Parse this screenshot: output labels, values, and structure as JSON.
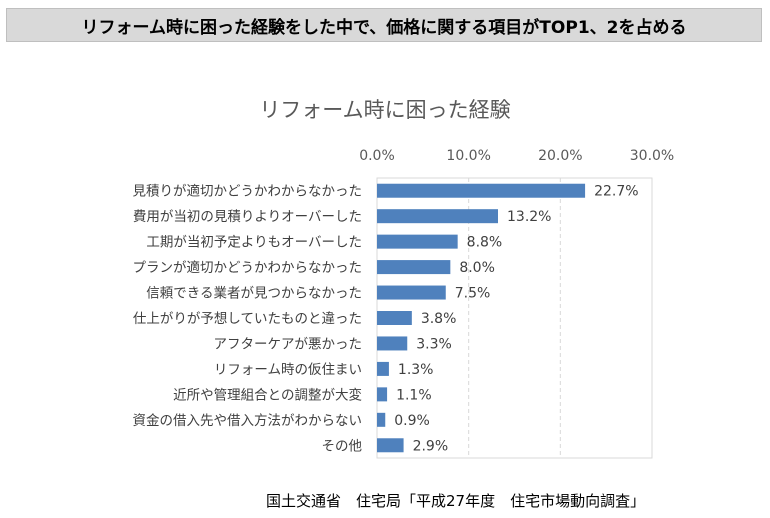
{
  "banner": {
    "text": "リフォーム時に困った経験をした中で、価格に関する項目がTOP1、2を占める"
  },
  "footer": {
    "source": "国土交通省　住宅局「平成27年度　住宅市場動向調査」"
  },
  "chart_data": {
    "type": "bar",
    "orientation": "horizontal",
    "title": "リフォーム時に困った経験",
    "categories": [
      "見積りが適切かどうかわからなかった",
      "費用が当初の見積りよりオーバーした",
      "工期が当初予定よりもオーバーした",
      "プランが適切かどうかわからなかった",
      "信頼できる業者が見つからなかった",
      "仕上がりが予想していたものと違った",
      "アフターケアが悪かった",
      "リフォーム時の仮住まい",
      "近所や管理組合との調整が大変",
      "資金の借入先や借入方法がわからない",
      "その他"
    ],
    "values": [
      22.7,
      13.2,
      8.8,
      8.0,
      7.5,
      3.8,
      3.3,
      1.3,
      1.1,
      0.9,
      2.9
    ],
    "data_labels": [
      "22.7%",
      "13.2%",
      "8.8%",
      "8.0%",
      "7.5%",
      "3.8%",
      "3.3%",
      "1.3%",
      "1.1%",
      "0.9%",
      "2.9%"
    ],
    "xlim": [
      0,
      30
    ],
    "ticks": [
      0,
      10,
      20,
      30
    ],
    "tick_labels": [
      "0.0%",
      "10.0%",
      "20.0%",
      "30.0%"
    ],
    "axis_position": "top",
    "grid": true,
    "bar_color": "#4f81bd"
  }
}
